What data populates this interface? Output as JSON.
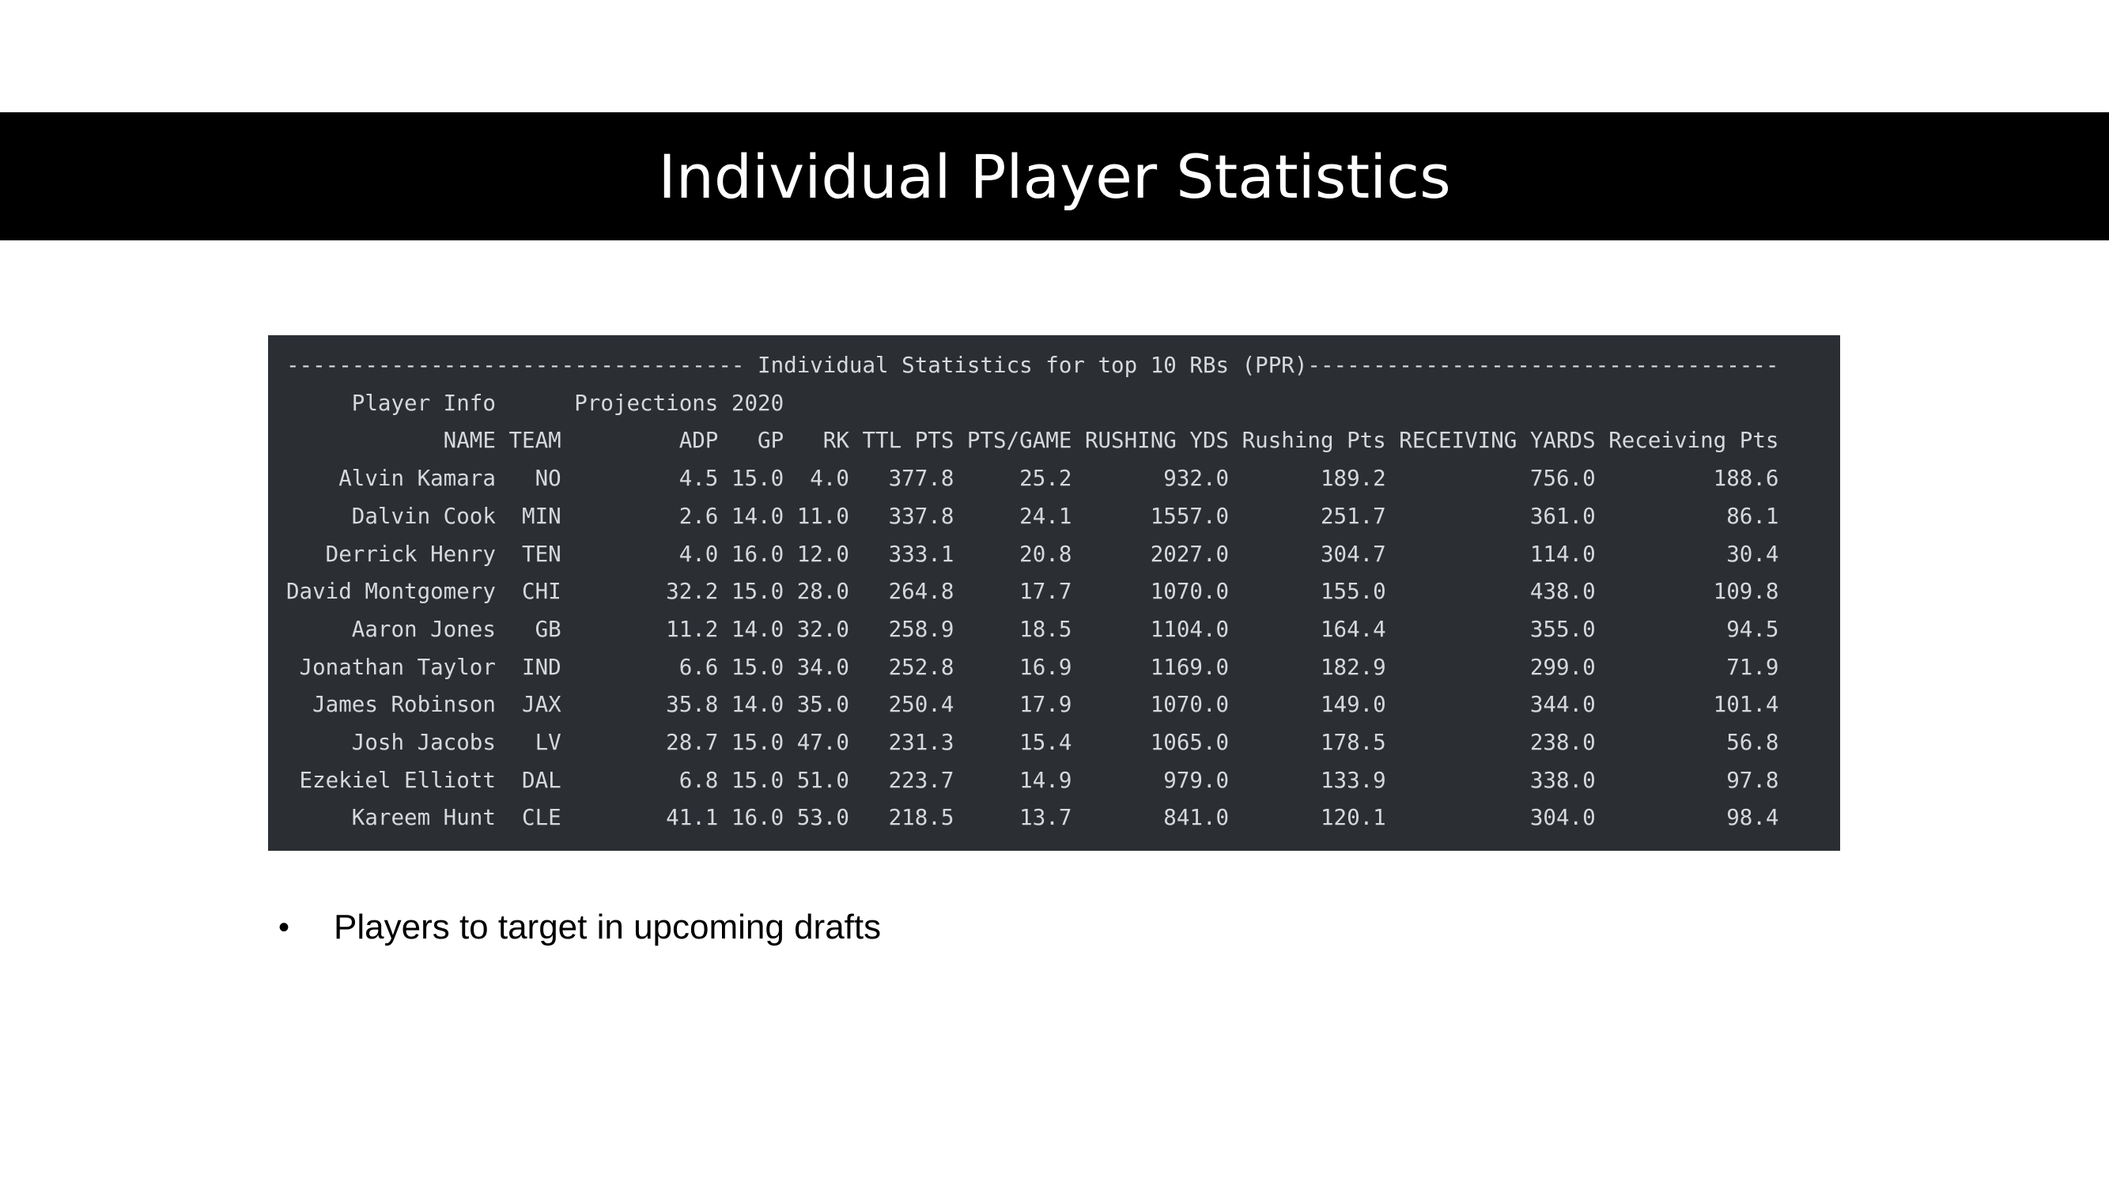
{
  "slide": {
    "title": "Individual Player Statistics",
    "bullets": [
      {
        "symbol": "•",
        "text": "Players to target in upcoming drafts"
      }
    ]
  },
  "terminal": {
    "background": "#2b2e33",
    "text_color": "#d6d8dc",
    "heading_text": "Individual Statistics for top 10 RBs (PPR)",
    "group_headers": [
      "Player Info",
      "Projections 2020"
    ],
    "columns": [
      "NAME",
      "TEAM",
      "ADP",
      "GP",
      "RK",
      "TTL PTS",
      "PTS/GAME",
      "RUSHING YDS",
      "Rushing Pts",
      "RECEIVING YARDS",
      "Receiving Pts"
    ],
    "rows": [
      [
        "Alvin Kamara",
        "NO",
        "4.5",
        "15.0",
        "4.0",
        "377.8",
        "25.2",
        "932.0",
        "189.2",
        "756.0",
        "188.6"
      ],
      [
        "Dalvin Cook",
        "MIN",
        "2.6",
        "14.0",
        "11.0",
        "337.8",
        "24.1",
        "1557.0",
        "251.7",
        "361.0",
        "86.1"
      ],
      [
        "Derrick Henry",
        "TEN",
        "4.0",
        "16.0",
        "12.0",
        "333.1",
        "20.8",
        "2027.0",
        "304.7",
        "114.0",
        "30.4"
      ],
      [
        "David Montgomery",
        "CHI",
        "32.2",
        "15.0",
        "28.0",
        "264.8",
        "17.7",
        "1070.0",
        "155.0",
        "438.0",
        "109.8"
      ],
      [
        "Aaron Jones",
        "GB",
        "11.2",
        "14.0",
        "32.0",
        "258.9",
        "18.5",
        "1104.0",
        "164.4",
        "355.0",
        "94.5"
      ],
      [
        "Jonathan Taylor",
        "IND",
        "6.6",
        "15.0",
        "34.0",
        "252.8",
        "16.9",
        "1169.0",
        "182.9",
        "299.0",
        "71.9"
      ],
      [
        "James Robinson",
        "JAX",
        "35.8",
        "14.0",
        "35.0",
        "250.4",
        "17.9",
        "1070.0",
        "149.0",
        "344.0",
        "101.4"
      ],
      [
        "Josh Jacobs",
        "LV",
        "28.7",
        "15.0",
        "47.0",
        "231.3",
        "15.4",
        "1065.0",
        "178.5",
        "238.0",
        "56.8"
      ],
      [
        "Ezekiel Elliott",
        "DAL",
        "6.8",
        "15.0",
        "51.0",
        "223.7",
        "14.9",
        "979.0",
        "133.9",
        "338.0",
        "97.8"
      ],
      [
        "Kareem Hunt",
        "CLE",
        "41.1",
        "16.0",
        "53.0",
        "218.5",
        "13.7",
        "841.0",
        "120.1",
        "304.0",
        "98.4"
      ]
    ]
  }
}
